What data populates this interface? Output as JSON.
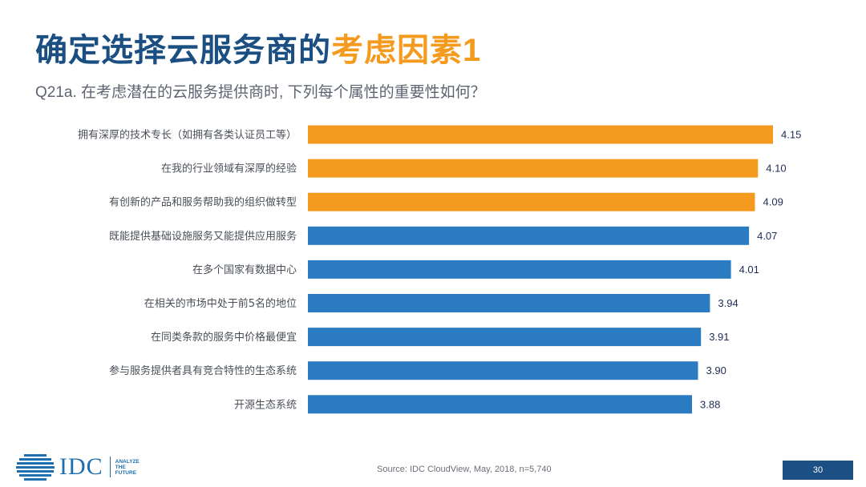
{
  "slide": {
    "title_main": "确定选择云服务商的",
    "title_accent": "考虑因素1",
    "subtitle": "Q21a. 在考虑潜在的云服务提供商时, 下列每个属性的重要性如何？",
    "source": "Source: IDC CloudView, May, 2018, n=5,740",
    "page_number": "30"
  },
  "logo": {
    "name": "IDC",
    "tagline": [
      "ANALYZE",
      "THE",
      "FUTURE"
    ]
  },
  "colors": {
    "highlight": "#f39a1f",
    "base": "#2a7bc1",
    "title": "#1b4f82",
    "value_label": "#1f2b55"
  },
  "chart_data": {
    "type": "bar",
    "orientation": "horizontal",
    "title": "",
    "xlabel": "",
    "ylabel": "",
    "xlim": [
      2.6,
      4.15
    ],
    "categories": [
      "拥有深厚的技术专长（如拥有各类认证员工等）",
      "在我的行业领域有深厚的经验",
      "有创新的产品和服务帮助我的组织做转型",
      "既能提供基础设施服务又能提供应用服务",
      "在多个国家有数据中心",
      "在相关的市场中处于前5名的地位",
      "在同类条款的服务中价格最便宜",
      "参与服务提供者具有竞合特性的生态系统",
      "开源生态系统"
    ],
    "values": [
      4.15,
      4.1,
      4.09,
      4.07,
      4.01,
      3.94,
      3.91,
      3.9,
      3.88
    ],
    "value_labels": [
      "4.15",
      "4.10",
      "4.09",
      "4.07",
      "4.01",
      "3.94",
      "3.91",
      "3.90",
      "3.88"
    ],
    "highlighted_count": 3
  }
}
